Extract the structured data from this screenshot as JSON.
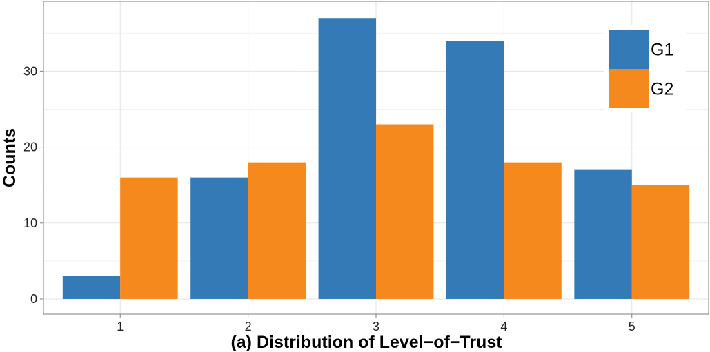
{
  "chart_data": {
    "type": "bar",
    "xlabel": "(a) Distribution of Level−of−Trust",
    "ylabel": "Counts",
    "categories": [
      "1",
      "2",
      "3",
      "4",
      "5"
    ],
    "series": [
      {
        "name": "G1",
        "color": "#337ab7",
        "values": [
          3,
          16,
          37,
          34,
          17
        ]
      },
      {
        "name": "G2",
        "color": "#f5891e",
        "values": [
          16,
          18,
          23,
          18,
          15
        ]
      }
    ],
    "yticks": [
      "0",
      "10",
      "20",
      "30"
    ],
    "ylim": [
      -2,
      39.2
    ],
    "grid": true,
    "legend_position": "top-right"
  }
}
